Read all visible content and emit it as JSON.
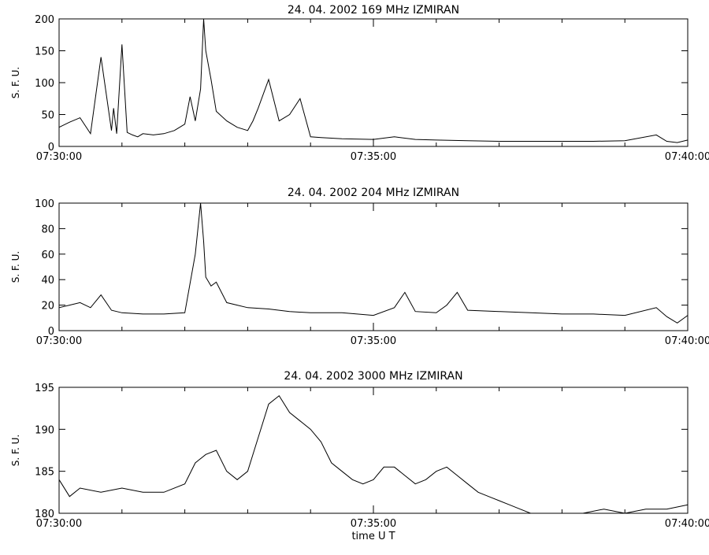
{
  "chart_data": [
    {
      "type": "line",
      "title": "24.  04.  2002    169  MHz    IZMIRAN",
      "ylabel": "S.  F.  U.",
      "xlabel": "",
      "x_ticks": [
        "07:30:00",
        "07:35:00",
        "07:40:00"
      ],
      "x_range": [
        "07:30:00",
        "07:40:00"
      ],
      "ylim": [
        0,
        200
      ],
      "y_ticks": [
        0,
        50,
        100,
        150,
        200
      ],
      "grid": false,
      "series": [
        {
          "x": [
            "07:30:00",
            "07:30:10",
            "07:30:20",
            "07:30:30",
            "07:30:40",
            "07:30:50",
            "07:30:52",
            "07:30:55",
            "07:31:00",
            "07:31:05",
            "07:31:10",
            "07:31:15",
            "07:31:20",
            "07:31:30",
            "07:31:40",
            "07:31:50",
            "07:32:00",
            "07:32:05",
            "07:32:10",
            "07:32:15",
            "07:32:18",
            "07:32:20",
            "07:32:25",
            "07:32:30",
            "07:32:40",
            "07:32:50",
            "07:33:00",
            "07:33:05",
            "07:33:10",
            "07:33:20",
            "07:33:30",
            "07:33:40",
            "07:33:50",
            "07:34:00",
            "07:34:10",
            "07:34:30",
            "07:35:00",
            "07:35:20",
            "07:35:40",
            "07:36:00",
            "07:36:30",
            "07:37:00",
            "07:37:30",
            "07:38:00",
            "07:38:30",
            "07:39:00",
            "07:39:30",
            "07:39:40",
            "07:39:50",
            "07:40:00"
          ],
          "y": [
            30,
            38,
            45,
            20,
            140,
            25,
            60,
            20,
            160,
            22,
            18,
            15,
            20,
            18,
            20,
            25,
            35,
            78,
            40,
            90,
            200,
            150,
            105,
            55,
            40,
            30,
            25,
            40,
            60,
            105,
            40,
            50,
            75,
            15,
            14,
            12,
            11,
            15,
            11,
            10,
            9,
            8,
            8,
            8,
            8,
            9,
            18,
            8,
            6,
            10
          ]
        }
      ]
    },
    {
      "type": "line",
      "title": "24.  04.  2002    204  MHz    IZMIRAN",
      "ylabel": "S.  F.  U.",
      "xlabel": "",
      "x_ticks": [
        "07:30:00",
        "07:35:00",
        "07:40:00"
      ],
      "x_range": [
        "07:30:00",
        "07:40:00"
      ],
      "ylim": [
        0,
        100
      ],
      "y_ticks": [
        0,
        20,
        40,
        60,
        80,
        100
      ],
      "grid": false,
      "series": [
        {
          "x": [
            "07:30:00",
            "07:30:10",
            "07:30:20",
            "07:30:30",
            "07:30:40",
            "07:30:50",
            "07:31:00",
            "07:31:20",
            "07:31:40",
            "07:32:00",
            "07:32:10",
            "07:32:15",
            "07:32:18",
            "07:32:20",
            "07:32:25",
            "07:32:30",
            "07:32:40",
            "07:32:50",
            "07:33:00",
            "07:33:20",
            "07:33:40",
            "07:34:00",
            "07:34:30",
            "07:35:00",
            "07:35:20",
            "07:35:30",
            "07:35:40",
            "07:36:00",
            "07:36:10",
            "07:36:20",
            "07:36:30",
            "07:37:00",
            "07:37:30",
            "07:38:00",
            "07:38:30",
            "07:39:00",
            "07:39:30",
            "07:39:40",
            "07:39:50",
            "07:40:00"
          ],
          "y": [
            18,
            20,
            22,
            18,
            28,
            16,
            14,
            13,
            13,
            14,
            60,
            100,
            70,
            42,
            35,
            38,
            22,
            20,
            18,
            17,
            15,
            14,
            14,
            12,
            18,
            30,
            15,
            14,
            20,
            30,
            16,
            15,
            14,
            13,
            13,
            12,
            18,
            11,
            6,
            12
          ]
        }
      ]
    },
    {
      "type": "line",
      "title": "24.  04.  2002    3000  MHz    IZMIRAN",
      "ylabel": "S.  F.  U.",
      "xlabel": "time    U  T",
      "x_ticks": [
        "07:30:00",
        "07:35:00",
        "07:40:00"
      ],
      "x_range": [
        "07:30:00",
        "07:40:00"
      ],
      "ylim": [
        180,
        195
      ],
      "y_ticks": [
        180,
        185,
        190,
        195
      ],
      "grid": false,
      "series": [
        {
          "x": [
            "07:30:00",
            "07:30:10",
            "07:30:20",
            "07:30:40",
            "07:31:00",
            "07:31:20",
            "07:31:40",
            "07:32:00",
            "07:32:10",
            "07:32:20",
            "07:32:30",
            "07:32:40",
            "07:32:50",
            "07:33:00",
            "07:33:10",
            "07:33:20",
            "07:33:30",
            "07:33:40",
            "07:33:50",
            "07:34:00",
            "07:34:10",
            "07:34:20",
            "07:34:30",
            "07:34:40",
            "07:34:50",
            "07:35:00",
            "07:35:10",
            "07:35:20",
            "07:35:30",
            "07:35:40",
            "07:35:50",
            "07:36:00",
            "07:36:10",
            "07:36:20",
            "07:36:30",
            "07:36:40",
            "07:36:50",
            "07:37:00",
            "07:37:10",
            "07:37:20",
            "07:37:30",
            "07:37:40",
            "07:37:50",
            "07:38:00",
            "07:38:20",
            "07:38:40",
            "07:39:00",
            "07:39:20",
            "07:39:40",
            "07:40:00"
          ],
          "y": [
            184,
            182,
            183,
            182.5,
            183,
            182.5,
            182.5,
            183.5,
            186,
            187,
            187.5,
            185,
            184,
            185,
            189,
            193,
            194,
            192,
            191,
            190,
            188.5,
            186,
            185,
            184,
            183.5,
            184,
            185.5,
            185.5,
            184.5,
            183.5,
            184,
            185,
            185.5,
            184.5,
            183.5,
            182.5,
            182,
            181.5,
            181,
            180.5,
            180,
            180,
            179.5,
            180,
            180,
            180.5,
            180,
            180.5,
            180.5,
            181
          ]
        }
      ]
    }
  ]
}
